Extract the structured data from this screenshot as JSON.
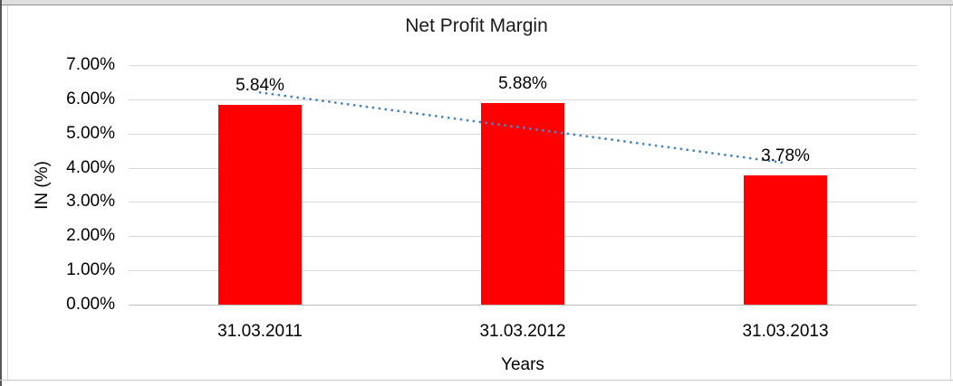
{
  "chart_data": {
    "type": "bar",
    "title": "Net Profit Margin",
    "categories": [
      "31.03.2011",
      "31.03.2012",
      "31.03.2013"
    ],
    "values": [
      5.84,
      5.88,
      3.78
    ],
    "data_labels": [
      "5.84%",
      "5.88%",
      "3.78%"
    ],
    "xlabel": "Years",
    "ylabel": "IN (%)",
    "ylim": [
      0,
      7
    ],
    "ytick_labels": [
      "7.00%",
      "6.00%",
      "5.00%",
      "4.00%",
      "3.00%",
      "2.00%",
      "1.00%",
      "0.00%"
    ],
    "grid": true,
    "legend": "none",
    "bar_color": "#ff0000",
    "gridline_color": "#d9d9d9",
    "axis_line_color": "#bfbfbf",
    "trendline": {
      "type": "linear",
      "style": "dotted",
      "color": "#4e86c2",
      "start_pct": 6.2,
      "end_pct": 4.14
    }
  },
  "frame": {
    "top_strip_color": "#dfdfdf",
    "border_color": "#8f8f8f",
    "left_edge_color": "#565656",
    "inner_line_color": "#d6d6d6"
  }
}
